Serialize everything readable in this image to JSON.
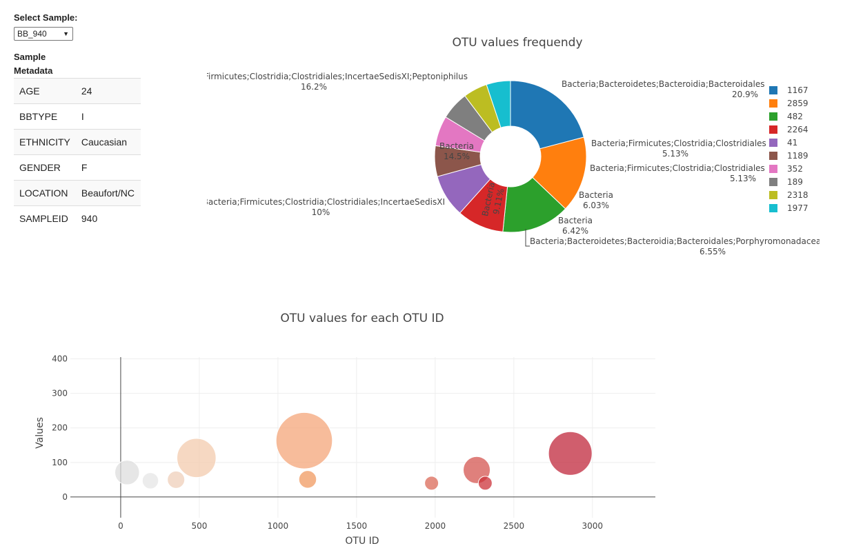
{
  "selector": {
    "label": "Select Sample:",
    "value": "BB_940"
  },
  "metadata": {
    "title": "Sample Metadata",
    "rows": [
      {
        "key": "AGE",
        "value": "24"
      },
      {
        "key": "BBTYPE",
        "value": "I"
      },
      {
        "key": "ETHNICITY",
        "value": "Caucasian"
      },
      {
        "key": "GENDER",
        "value": "F"
      },
      {
        "key": "LOCATION",
        "value": "Beaufort/NC"
      },
      {
        "key": "SAMPLEID",
        "value": "940"
      }
    ]
  },
  "chart_data": [
    {
      "type": "pie",
      "title": "OTU values frequendy",
      "hole": 0.4,
      "legend_position": "right",
      "labels": [
        "1167",
        "2859",
        "482",
        "2264",
        "41",
        "1189",
        "352",
        "189",
        "2318",
        "1977"
      ],
      "percents": [
        20.9,
        16.2,
        14.5,
        10,
        9.11,
        6.55,
        6.42,
        6.03,
        5.13,
        5.13
      ],
      "colors": [
        "#1f77b4",
        "#ff7f0e",
        "#2ca02c",
        "#d62728",
        "#9467bd",
        "#8c564b",
        "#e377c2",
        "#7f7f7f",
        "#bcbd22",
        "#17becf"
      ],
      "slice_text": [
        {
          "label": "1167",
          "name": "Bacteria;Bacteroidetes;Bacteroidia;Bacteroidales",
          "pct": "20.9%"
        },
        {
          "label": "2859",
          "name": "Bacteria;Firmicutes;Clostridia;Clostridiales;IncertaeSedisXI;Peptoniphilus",
          "pct": "16.2%"
        },
        {
          "label": "482",
          "name": "Bacteria",
          "pct": "14.5%"
        },
        {
          "label": "2264",
          "name": "Bacteria;Firmicutes;Clostridia;Clostridiales;IncertaeSedisXI",
          "pct": "10%"
        },
        {
          "label": "41",
          "name": "Bacteria",
          "pct": "9.11%"
        },
        {
          "label": "1189",
          "name": "Bacteria;Bacteroidetes;Bacteroidia;Bacteroidales;Porphyromonadaceae",
          "pct": "6.55%"
        },
        {
          "label": "352",
          "name": "Bacteria",
          "pct": "6.42%"
        },
        {
          "label": "189",
          "name": "Bacteria",
          "pct": "6.03%"
        },
        {
          "label": "2318",
          "name": "Bacteria;Firmicutes;Clostridia;Clostridiales",
          "pct": "5.13%"
        },
        {
          "label": "1977",
          "name": "Bacteria;Firmicutes;Clostridia;Clostridiales",
          "pct": "5.13%"
        }
      ]
    },
    {
      "type": "scatter",
      "title": "OTU values for each OTU ID",
      "xlabel": "OTU ID",
      "ylabel": "Values",
      "xlim": [
        -320,
        3400
      ],
      "ylim": [
        -60,
        405
      ],
      "xticks": [
        0,
        500,
        1000,
        1500,
        2000,
        2500,
        3000
      ],
      "yticks": [
        0,
        100,
        200,
        300,
        400
      ],
      "points": [
        {
          "x": 41,
          "y": 71,
          "size": 71,
          "color": "#dddddd"
        },
        {
          "x": 189,
          "y": 47,
          "size": 47,
          "color": "#e6e6e6"
        },
        {
          "x": 352,
          "y": 50,
          "size": 50,
          "color": "#efcfba"
        },
        {
          "x": 482,
          "y": 113,
          "size": 113,
          "color": "#f3cbae"
        },
        {
          "x": 1167,
          "y": 163,
          "size": 163,
          "color": "#f4a67a"
        },
        {
          "x": 1189,
          "y": 51,
          "size": 51,
          "color": "#f09960"
        },
        {
          "x": 1977,
          "y": 40,
          "size": 40,
          "color": "#db6a58"
        },
        {
          "x": 2264,
          "y": 78,
          "size": 78,
          "color": "#d45650"
        },
        {
          "x": 2318,
          "y": 40,
          "size": 40,
          "color": "#cc333a"
        },
        {
          "x": 2859,
          "y": 126,
          "size": 126,
          "color": "#c0283c"
        }
      ]
    }
  ]
}
